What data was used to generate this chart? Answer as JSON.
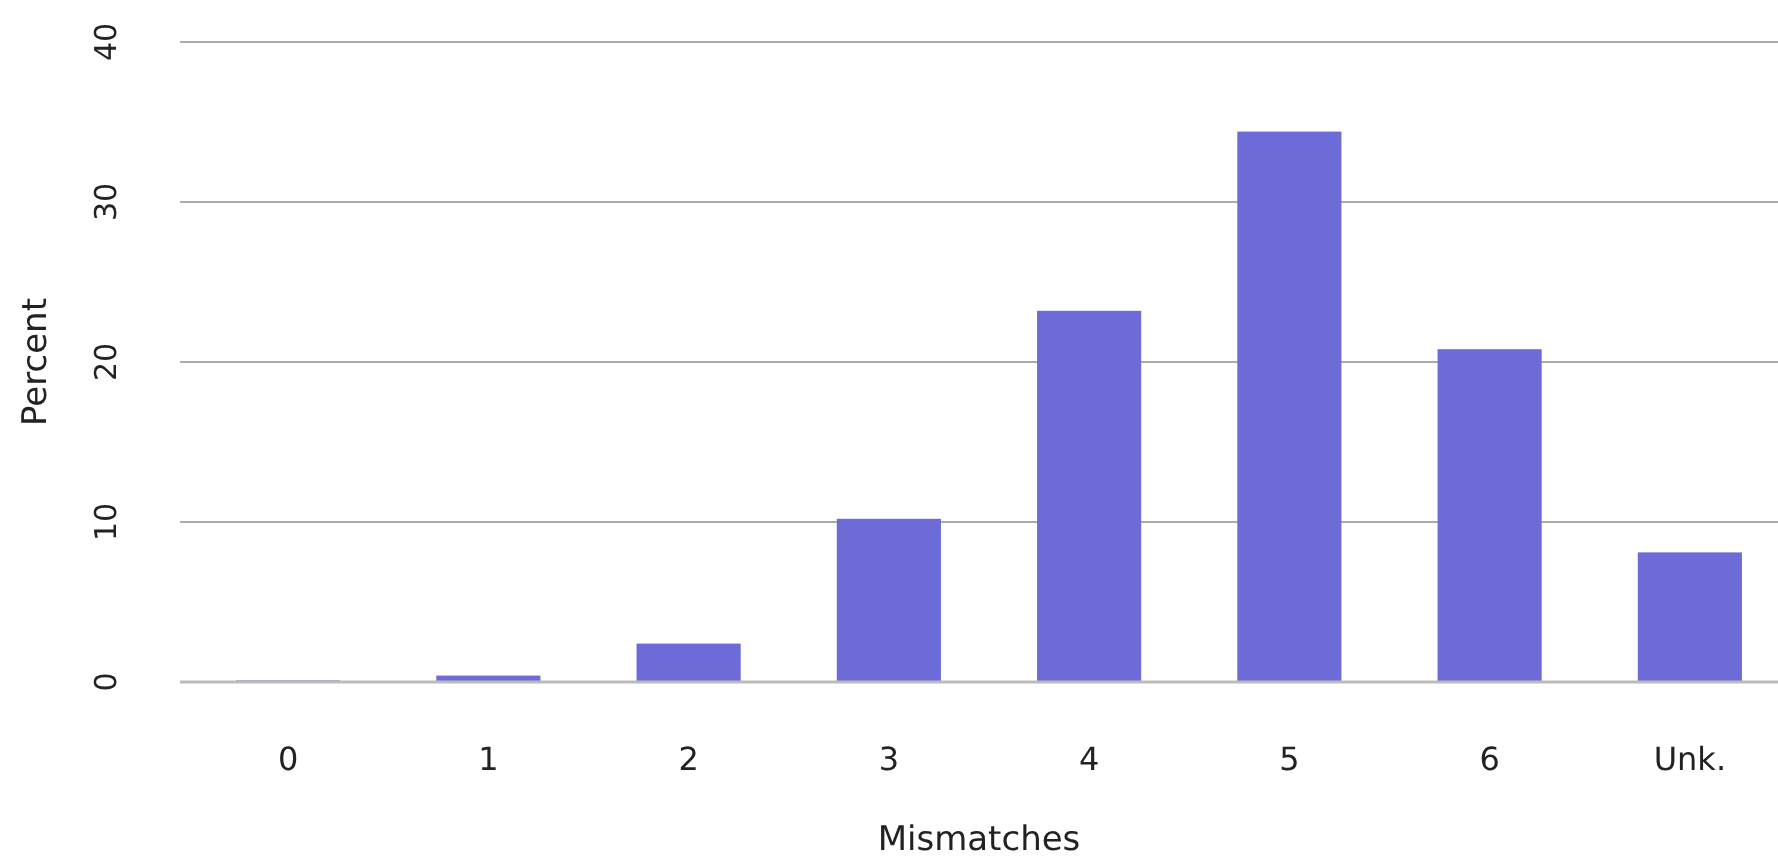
{
  "chart_data": {
    "type": "bar",
    "xlabel": "Mismatches",
    "ylabel": "Percent",
    "categories": [
      "0",
      "1",
      "2",
      "3",
      "4",
      "5",
      "6",
      "Unk."
    ],
    "values": [
      0.1,
      0.4,
      2.4,
      10.2,
      23.2,
      34.4,
      20.8,
      8.1
    ],
    "color": "#6c6bd7",
    "ylim": [
      0,
      40
    ],
    "yticks": [
      0,
      10,
      20,
      30,
      40
    ],
    "grid": "y"
  }
}
